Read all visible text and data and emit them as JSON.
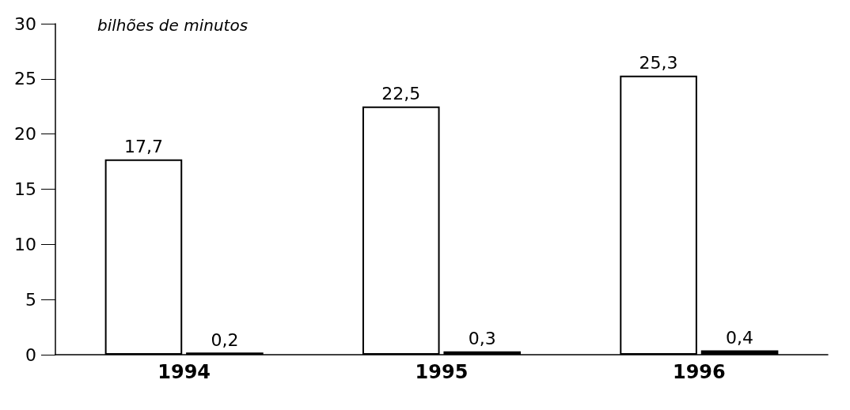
{
  "chart_data": {
    "type": "bar",
    "ylabel": "bilhões de minutos",
    "categories": [
      "1994",
      "1995",
      "1996"
    ],
    "series": [
      {
        "color": "#ffffff",
        "values": [
          17.7,
          22.5,
          25.3
        ],
        "value_labels": [
          "17,7",
          "22,5",
          "25,3"
        ]
      },
      {
        "color": "#000000",
        "values": [
          0.2,
          0.3,
          0.4
        ],
        "value_labels": [
          "0,2",
          "0,3",
          "0,4"
        ]
      }
    ],
    "ylim": [
      0,
      30
    ],
    "yticks": [
      0,
      5,
      10,
      15,
      20,
      25,
      30
    ],
    "grid": false
  }
}
